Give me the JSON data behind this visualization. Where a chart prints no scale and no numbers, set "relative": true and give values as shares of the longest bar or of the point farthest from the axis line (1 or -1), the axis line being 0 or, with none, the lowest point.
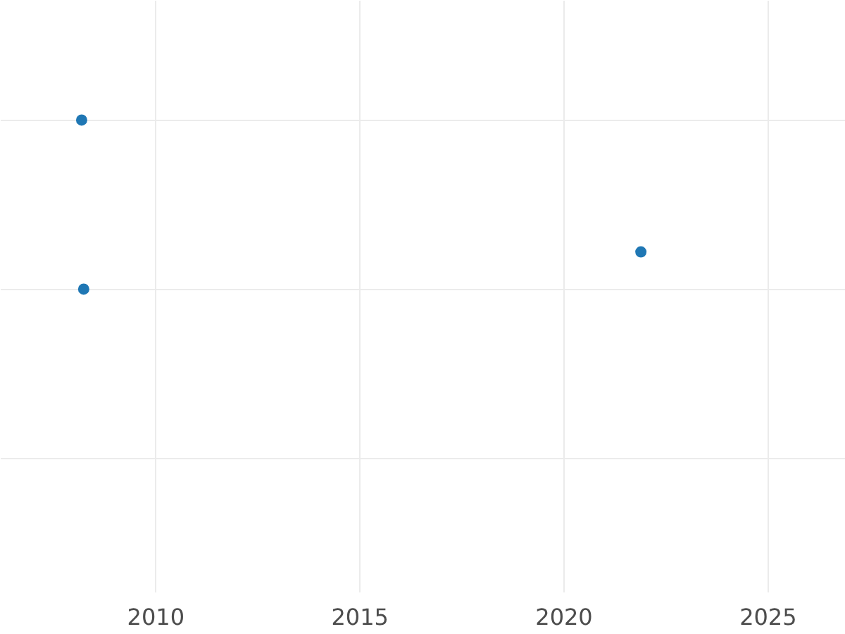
{
  "chart_data": {
    "type": "scatter",
    "relative": true,
    "x": [
      2008.2,
      2008.25,
      2021.9
    ],
    "series": [
      {
        "color": "#1f77b4",
        "values": [
          1,
          0,
          0.22
        ]
      }
    ],
    "xlim": [
      2006.2,
      2026.9
    ],
    "xticks": [
      2010,
      2015,
      2020,
      2025
    ],
    "grid": true,
    "marker": "circle"
  }
}
